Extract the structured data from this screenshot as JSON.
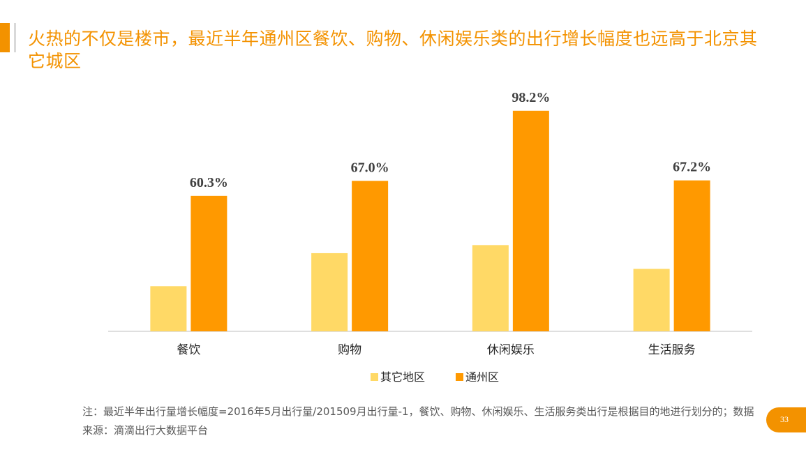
{
  "title": "火热的不仅是楼市，最近半年通州区餐饮、购物、休闲娱乐类的出行增长幅度也远高于北京其它城区",
  "note": "注：最近半年出行量增长幅度=2016年5月出行量/201509月出行量-1，餐饮、购物、休闲娱乐、生活服务类出行是根据目的地进行划分的；数据来源：滴滴出行大数据平台",
  "page_number": "33",
  "colors": {
    "accent": "#f39200",
    "other_districts": "#ffd966",
    "tongzhou": "#ff9900"
  },
  "chart_data": {
    "type": "bar",
    "categories": [
      "餐饮",
      "购物",
      "休闲娱乐",
      "生活服务"
    ],
    "series": [
      {
        "name": "其它地区",
        "values": [
          20.1,
          34.8,
          38.4,
          27.8
        ],
        "color": "#ffd966",
        "labels": [
          "",
          "",
          "",
          ""
        ]
      },
      {
        "name": "通州区",
        "values": [
          60.3,
          67.0,
          98.2,
          67.2
        ],
        "color": "#ff9900",
        "labels": [
          "60.3%",
          "67.0%",
          "98.2%",
          "67.2%"
        ]
      }
    ],
    "ylim": [
      0,
      100
    ],
    "grid": false,
    "legend_position": "bottom"
  }
}
